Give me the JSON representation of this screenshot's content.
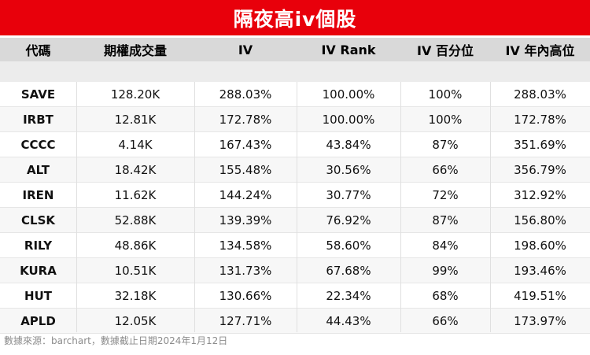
{
  "title": "隔夜高iv個股",
  "columns": [
    "代碼",
    "期權成交量",
    "IV",
    "IV Rank",
    "IV 百分位",
    "IV 年內高位"
  ],
  "rows": [
    [
      "SAVE",
      "128.20K",
      "288.03%",
      "100.00%",
      "100%",
      "288.03%"
    ],
    [
      "IRBT",
      "12.81K",
      "172.78%",
      "100.00%",
      "100%",
      "172.78%"
    ],
    [
      "CCCC",
      "4.14K",
      "167.43%",
      "43.84%",
      "87%",
      "351.69%"
    ],
    [
      "ALT",
      "18.42K",
      "155.48%",
      "30.56%",
      "66%",
      "356.79%"
    ],
    [
      "IREN",
      "11.62K",
      "144.24%",
      "30.77%",
      "72%",
      "312.92%"
    ],
    [
      "CLSK",
      "52.88K",
      "139.39%",
      "76.92%",
      "87%",
      "156.80%"
    ],
    [
      "RILY",
      "48.86K",
      "134.58%",
      "58.60%",
      "84%",
      "198.60%"
    ],
    [
      "KURA",
      "10.51K",
      "131.73%",
      "67.68%",
      "99%",
      "193.46%"
    ],
    [
      "HUT",
      "32.18K",
      "130.66%",
      "22.34%",
      "68%",
      "419.51%"
    ],
    [
      "APLD",
      "12.05K",
      "127.71%",
      "44.43%",
      "66%",
      "173.97%"
    ]
  ],
  "footer": "數據來源：barchart，數據截止日期2024年1月12日",
  "colors": {
    "title_bg": "#e8000b",
    "header_bg": "#d9d9d9"
  }
}
